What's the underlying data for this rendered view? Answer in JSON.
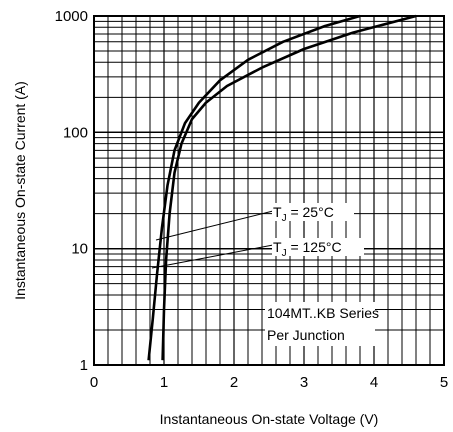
{
  "chart_data": {
    "type": "line",
    "xlabel": "Instantaneous On-state Voltage (V)",
    "ylabel": "Instantaneous On-state Current (A)",
    "xlim": [
      0,
      5
    ],
    "ylim": [
      1,
      1000
    ],
    "y_scale": "log",
    "grid": true,
    "x_ticks": [
      "0",
      "1",
      "2",
      "3",
      "4",
      "5"
    ],
    "y_ticks": [
      "1",
      "10",
      "100",
      "1000"
    ],
    "series": [
      {
        "name_prefix": "T",
        "name_sub": "J",
        "name_suffix": " = 25°C",
        "x": [
          0.78,
          0.84,
          0.9,
          0.97,
          1.05,
          1.15,
          1.3,
          1.5,
          1.8,
          2.2,
          2.7,
          3.3,
          3.8
        ],
        "y": [
          1.1,
          2.5,
          6,
          15,
          35,
          70,
          120,
          180,
          280,
          420,
          600,
          820,
          1000
        ]
      },
      {
        "name_prefix": "T",
        "name_sub": "J",
        "name_suffix": " = 125°C",
        "x": [
          0.98,
          1.0,
          1.03,
          1.08,
          1.15,
          1.25,
          1.4,
          1.6,
          1.9,
          2.4,
          3.0,
          3.7,
          4.6
        ],
        "y": [
          1.1,
          3,
          8,
          20,
          45,
          80,
          130,
          180,
          250,
          360,
          520,
          720,
          1000
        ]
      }
    ],
    "annotations": {
      "series_label_lines": [
        "104MT..KB Series",
        "Per Junction"
      ]
    }
  }
}
